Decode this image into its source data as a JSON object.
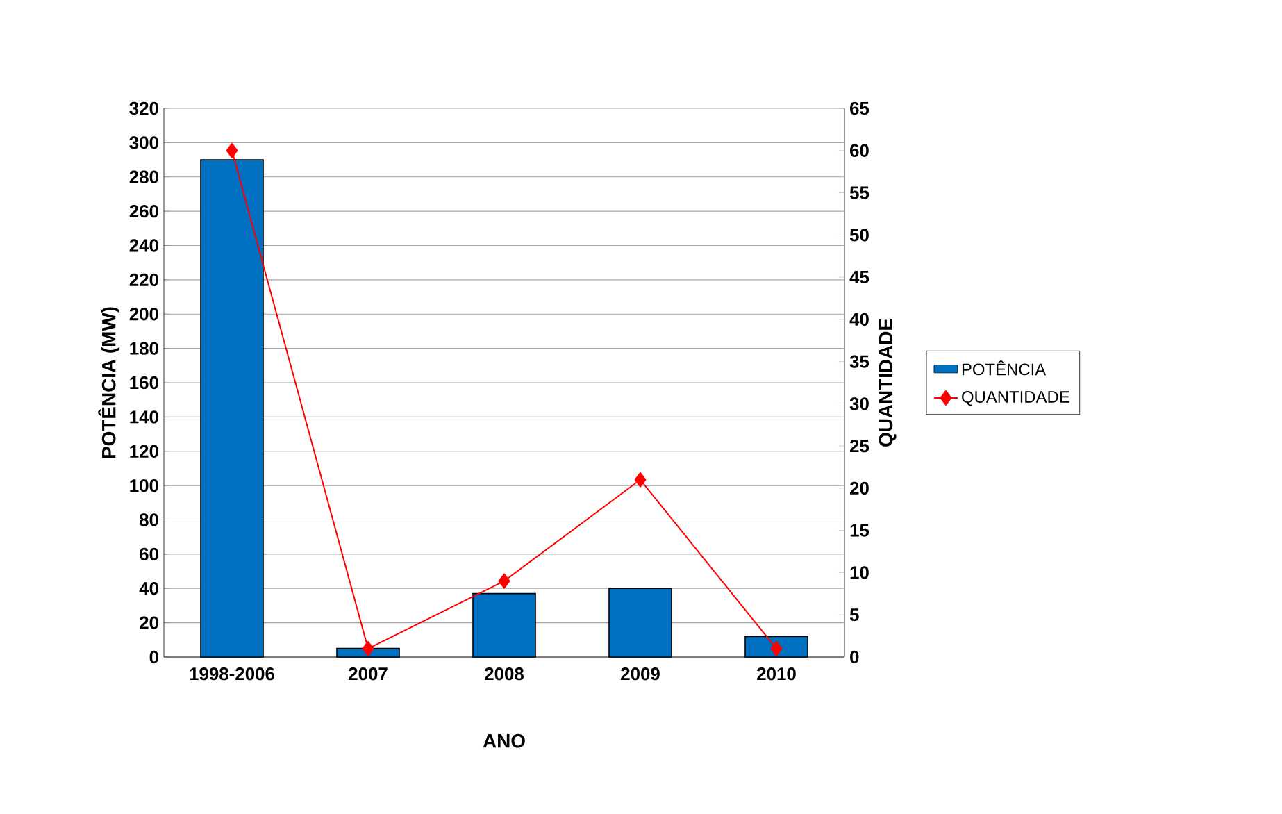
{
  "chart_data": {
    "type": "bar",
    "xlabel": "ANO",
    "ylabel": "POTÊNCIA (MW)",
    "y2label": "QUANTIDADE",
    "categories": [
      "1998-2006",
      "2007",
      "2008",
      "2009",
      "2010"
    ],
    "series": [
      {
        "name": "POTÊNCIA",
        "color": "#0070c0",
        "values": [
          290,
          5,
          37,
          40,
          12
        ]
      },
      {
        "name": "QUANTIDADE",
        "type": "line",
        "axis": "y2",
        "color": "#ff0000",
        "values": [
          60,
          1,
          9,
          21,
          1
        ]
      }
    ],
    "ylim": [
      0,
      320
    ],
    "yticks": [
      0,
      20,
      40,
      60,
      80,
      100,
      120,
      140,
      160,
      180,
      200,
      220,
      240,
      260,
      280,
      300,
      320
    ],
    "y2lim": [
      0,
      65
    ],
    "y2ticks": [
      0,
      5,
      10,
      15,
      20,
      25,
      30,
      35,
      40,
      45,
      50,
      55,
      60,
      65
    ],
    "grid": "y",
    "legend": "right",
    "marker": "diamond",
    "line_style": "solid"
  }
}
